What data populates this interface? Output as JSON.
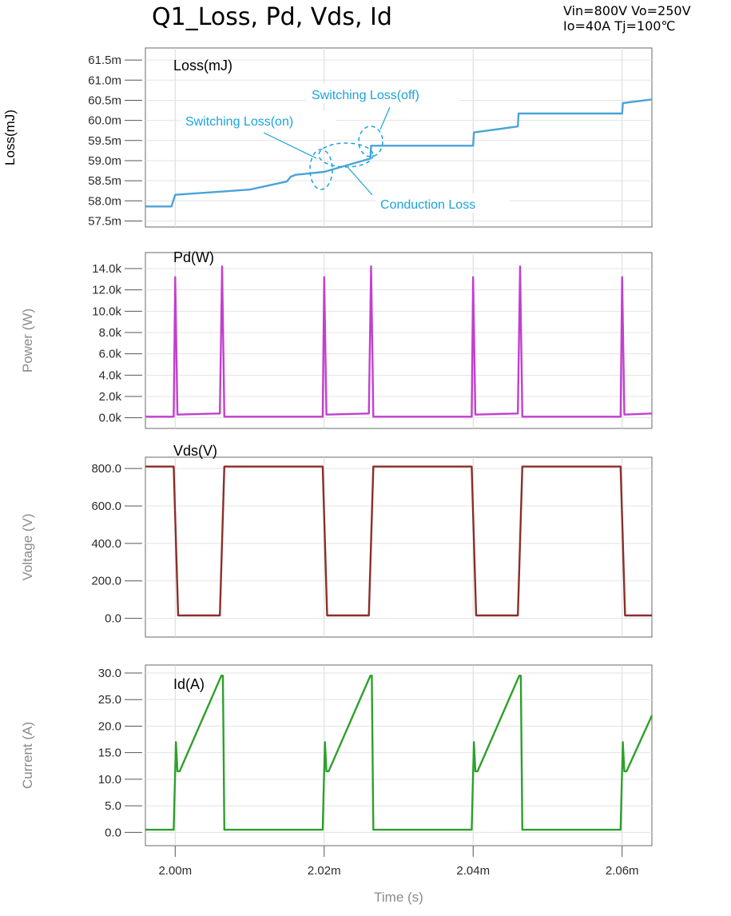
{
  "page": {
    "title": "Q1_Loss, Pd, Vds, Id",
    "conditions_line1": "Vin=800V Vo=250V",
    "conditions_line2": "Io=40A Tj=100℃"
  },
  "chart_data": [
    {
      "type": "line",
      "panel_label": "Loss(mJ)",
      "ylabel": "Loss(mJ)",
      "xlim": [
        0.001996,
        0.002064
      ],
      "ylim": [
        0.05735,
        0.0618
      ],
      "yticks": [
        0.0575,
        0.058,
        0.0585,
        0.059,
        0.0595,
        0.06,
        0.0605,
        0.061,
        0.0615
      ],
      "ytick_labels": [
        "57.5m",
        "58.0m",
        "58.5m",
        "59.0m",
        "59.5m",
        "60.0m",
        "60.5m",
        "61.0m",
        "61.5m"
      ],
      "grid": true,
      "color": "#4aa3d8",
      "series": [
        {
          "x": [
            0.001996,
            0.0019995,
            0.002,
            0.00201,
            0.002015,
            0.0020155,
            0.0020162,
            0.0020163,
            0.00202,
            0.0020262,
            0.0020263,
            0.00204,
            0.0020401,
            0.002046,
            0.0020461,
            0.00206,
            0.0020601,
            0.002064
          ],
          "y": [
            0.05786,
            0.05786,
            0.05815,
            0.05828,
            0.05848,
            0.0586,
            0.05865,
            0.05865,
            0.05872,
            0.05905,
            0.05937,
            0.05937,
            0.0597,
            0.05985,
            0.06017,
            0.06017,
            0.06043,
            0.06052
          ]
        }
      ],
      "annotations": [
        "Switching Loss(off)",
        "Switching Loss(on)",
        "Conduction Loss"
      ]
    },
    {
      "type": "line",
      "panel_label": "Pd(W)",
      "ylabel": "Power (W)",
      "xlim": [
        0.001996,
        0.002064
      ],
      "ylim": [
        -1000,
        15500
      ],
      "yticks": [
        0,
        2000,
        4000,
        6000,
        8000,
        10000,
        12000,
        14000
      ],
      "ytick_labels": [
        "0.0k",
        "2.0k",
        "4.0k",
        "6.0k",
        "8.0k",
        "10.0k",
        "12.0k",
        "14.0k"
      ],
      "grid": true,
      "color": "#c23fcf",
      "series": [
        {
          "x": [
            0.001996,
            0.0019998,
            0.002,
            0.0020003,
            0.002006,
            0.0020063,
            0.0020066,
            0.0020198,
            0.00202,
            0.0020203,
            0.002026,
            0.0020263,
            0.0020266,
            0.0020398,
            0.00204,
            0.0020403,
            0.002046,
            0.0020463,
            0.0020466,
            0.0020598,
            0.00206,
            0.0020603,
            0.002064
          ],
          "y": [
            100,
            100,
            13200,
            300,
            400,
            14200,
            100,
            100,
            13200,
            300,
            400,
            14200,
            100,
            100,
            13200,
            300,
            400,
            14200,
            100,
            100,
            13200,
            300,
            400
          ]
        }
      ]
    },
    {
      "type": "line",
      "panel_label": "Vds(V)",
      "ylabel": "Voltage (V)",
      "xlim": [
        0.001996,
        0.002064
      ],
      "ylim": [
        -100,
        860
      ],
      "yticks": [
        0,
        200,
        400,
        600,
        800
      ],
      "ytick_labels": [
        "0.0",
        "200.0",
        "400.0",
        "600.0",
        "800.0"
      ],
      "grid": true,
      "color": "#8b2e2a",
      "series": [
        {
          "x": [
            0.001996,
            0.0019998,
            0.0020004,
            0.002006,
            0.0020066,
            0.0020198,
            0.0020204,
            0.002026,
            0.0020266,
            0.0020398,
            0.0020404,
            0.002046,
            0.0020466,
            0.0020598,
            0.0020604,
            0.002064
          ],
          "y": [
            810,
            810,
            15,
            15,
            810,
            810,
            15,
            15,
            810,
            810,
            15,
            15,
            810,
            810,
            15,
            15
          ]
        }
      ]
    },
    {
      "type": "line",
      "panel_label": "Id(A)",
      "ylabel": "Current (A)",
      "xlabel": "Time (s)",
      "xlim": [
        0.001996,
        0.002064
      ],
      "ylim": [
        -2.5,
        31.5
      ],
      "xticks": [
        0.002,
        0.00202,
        0.00204,
        0.00206
      ],
      "xtick_labels": [
        "2.00m",
        "2.02m",
        "2.04m",
        "2.06m"
      ],
      "yticks": [
        0,
        5,
        10,
        15,
        20,
        25,
        30
      ],
      "ytick_labels": [
        "0.0",
        "5.0",
        "10.0",
        "15.0",
        "20.0",
        "25.0",
        "30.0"
      ],
      "grid": true,
      "color": "#2ea02c",
      "series": [
        {
          "x": [
            0.001996,
            0.0019998,
            0.0020001,
            0.0020003,
            0.0020006,
            0.0020062,
            0.0020064,
            0.0020066,
            0.0020198,
            0.0020201,
            0.0020203,
            0.0020206,
            0.0020262,
            0.0020264,
            0.0020266,
            0.0020398,
            0.0020401,
            0.0020403,
            0.0020406,
            0.0020462,
            0.0020464,
            0.0020466,
            0.0020598,
            0.0020601,
            0.0020603,
            0.0020606,
            0.002064
          ],
          "y": [
            0.5,
            0.5,
            17,
            11.5,
            11.5,
            29.5,
            29.5,
            0.5,
            0.5,
            17,
            11.5,
            11.5,
            29.5,
            29.5,
            0.5,
            0.5,
            17,
            11.5,
            11.5,
            29.5,
            29.5,
            0.5,
            0.5,
            17,
            11.5,
            11.5,
            22
          ]
        }
      ]
    }
  ]
}
